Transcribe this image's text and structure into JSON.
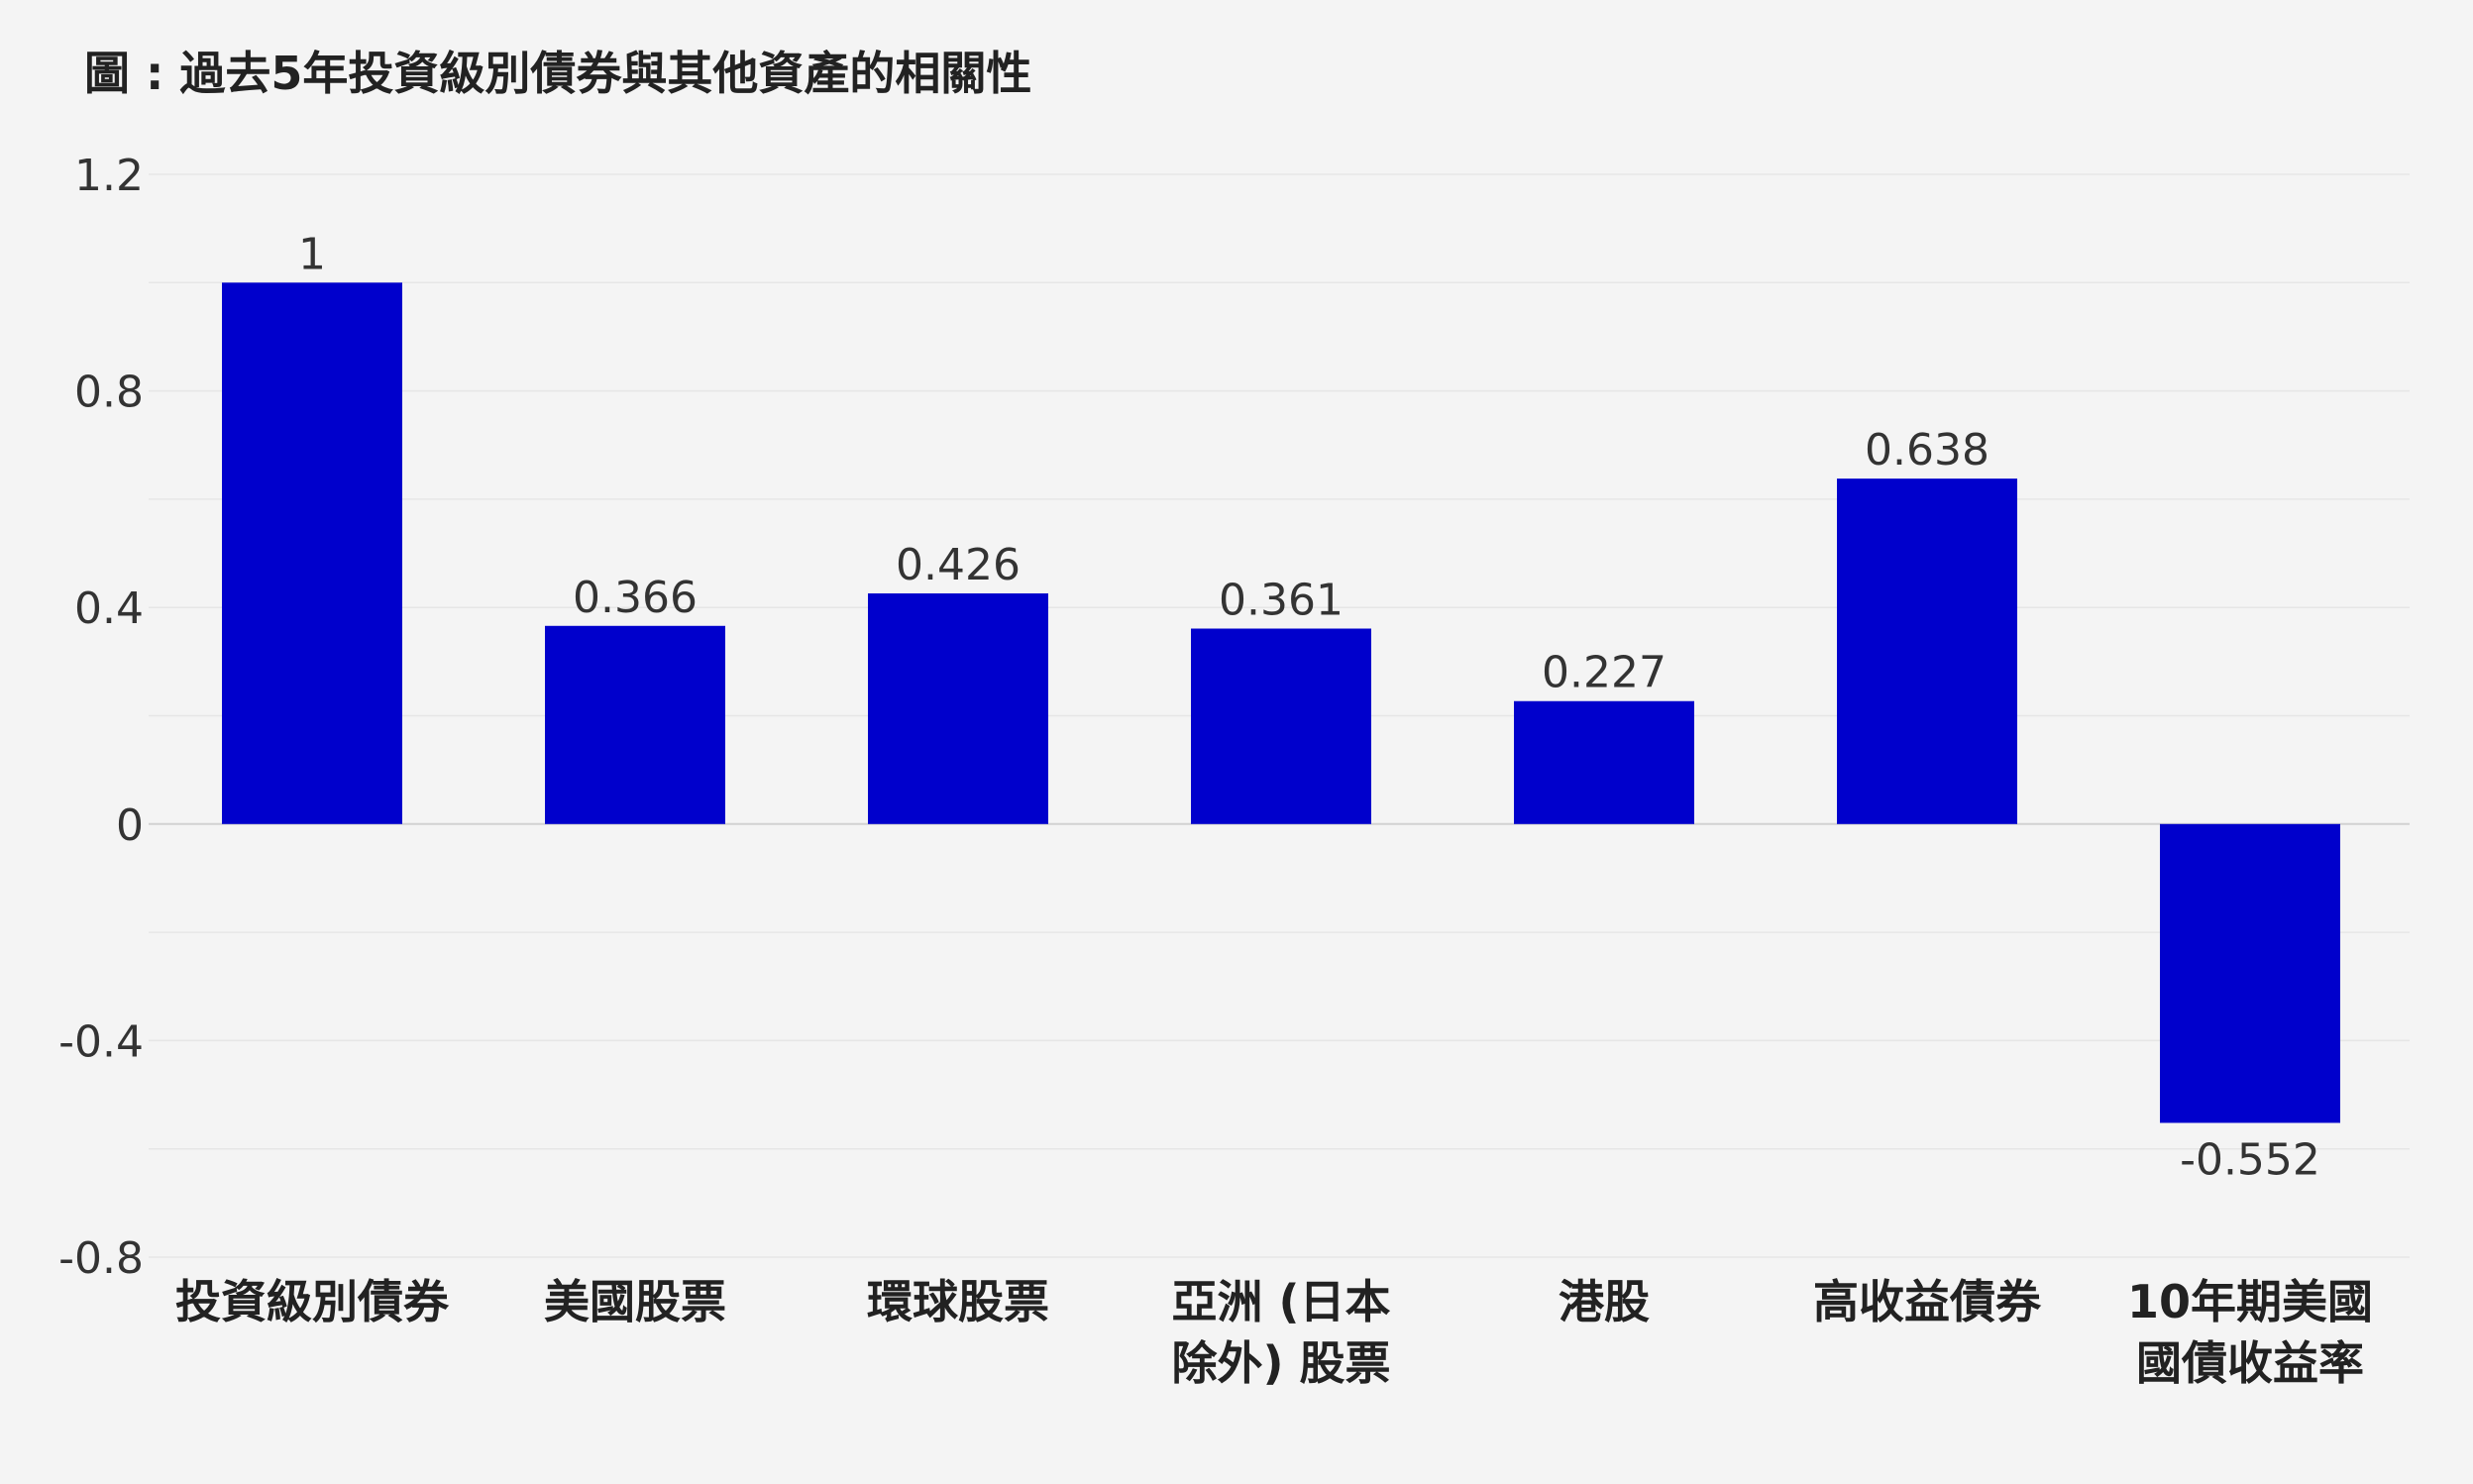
{
  "chart_data": {
    "type": "bar",
    "title": "圖 : 過去5年投資級別債券與其他資產的相關性",
    "categories": [
      [
        "投資級別債券"
      ],
      [
        "美國股票"
      ],
      [
        "環球股票"
      ],
      [
        "亞洲 (日本",
        "除外) 股票"
      ],
      [
        "港股"
      ],
      [
        "高收益債券"
      ],
      [
        "10年期美國",
        "國債收益率"
      ]
    ],
    "values": [
      1,
      0.366,
      0.426,
      0.361,
      0.227,
      0.638,
      -0.552
    ],
    "value_labels": [
      "1",
      "0.366",
      "0.426",
      "0.361",
      "0.227",
      "0.638",
      "-0.552"
    ],
    "ylim": [
      -0.8,
      1.2
    ],
    "yticks": [
      "1.2",
      "0.8",
      "0.4",
      "0",
      "-0.4",
      "-0.8"
    ],
    "ytick_values": [
      1.2,
      0.8,
      0.4,
      0,
      -0.4,
      -0.8
    ],
    "minor_grid_values": [
      1.0,
      0.6,
      0.2,
      -0.2,
      -0.6
    ],
    "bar_color": "#0000cc",
    "grid": true,
    "xlabel": "",
    "ylabel": ""
  }
}
